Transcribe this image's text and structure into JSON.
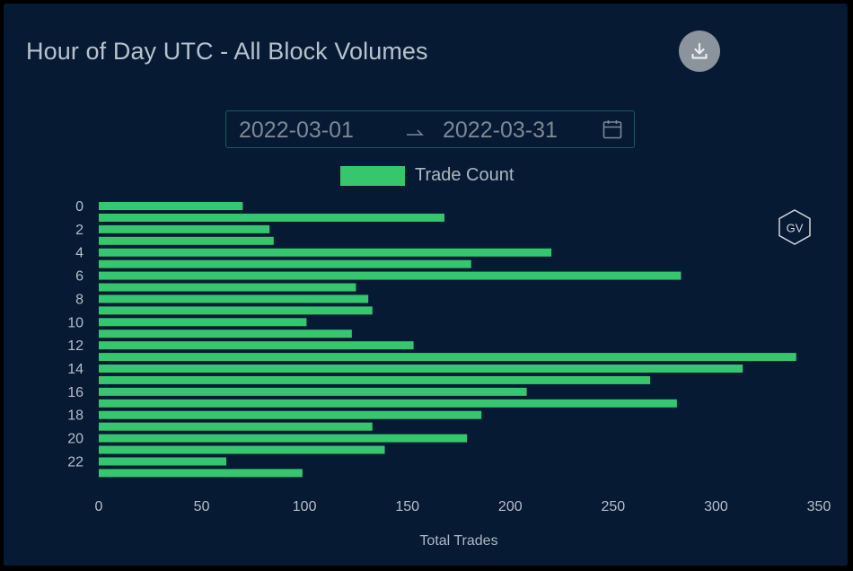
{
  "title": "Hour of Day UTC - All Block Volumes",
  "date_range": {
    "start": "2022-03-01",
    "end": "2022-03-31"
  },
  "icons": {
    "download": "download-icon",
    "calendar": "calendar-icon",
    "badge": "gv-logo-icon"
  },
  "badge_text": "GV",
  "colors": {
    "bar": "#35c66e",
    "background": "#061a33",
    "text": "#b6bfca"
  },
  "chart_data": {
    "type": "bar",
    "orientation": "horizontal",
    "title": "Hour of Day UTC - All Block Volumes",
    "xlabel": "Total Trades",
    "ylabel": "",
    "legend": {
      "position": "top-center",
      "entries": [
        "Trade Count"
      ]
    },
    "categories": [
      "0",
      "1",
      "2",
      "3",
      "4",
      "5",
      "6",
      "7",
      "8",
      "9",
      "10",
      "11",
      "12",
      "13",
      "14",
      "15",
      "16",
      "17",
      "18",
      "19",
      "20",
      "21",
      "22",
      "23"
    ],
    "y_tick_labels": [
      "0",
      "2",
      "4",
      "6",
      "8",
      "10",
      "12",
      "14",
      "16",
      "18",
      "20",
      "22"
    ],
    "series": [
      {
        "name": "Trade Count",
        "values": [
          70,
          168,
          83,
          85,
          220,
          181,
          283,
          125,
          131,
          133,
          101,
          123,
          153,
          339,
          313,
          268,
          208,
          281,
          186,
          133,
          179,
          139,
          62,
          99
        ]
      }
    ],
    "xlim": [
      0,
      350
    ],
    "x_ticks": [
      "0",
      "50",
      "100",
      "150",
      "200",
      "250",
      "300",
      "350"
    ],
    "grid": false
  }
}
